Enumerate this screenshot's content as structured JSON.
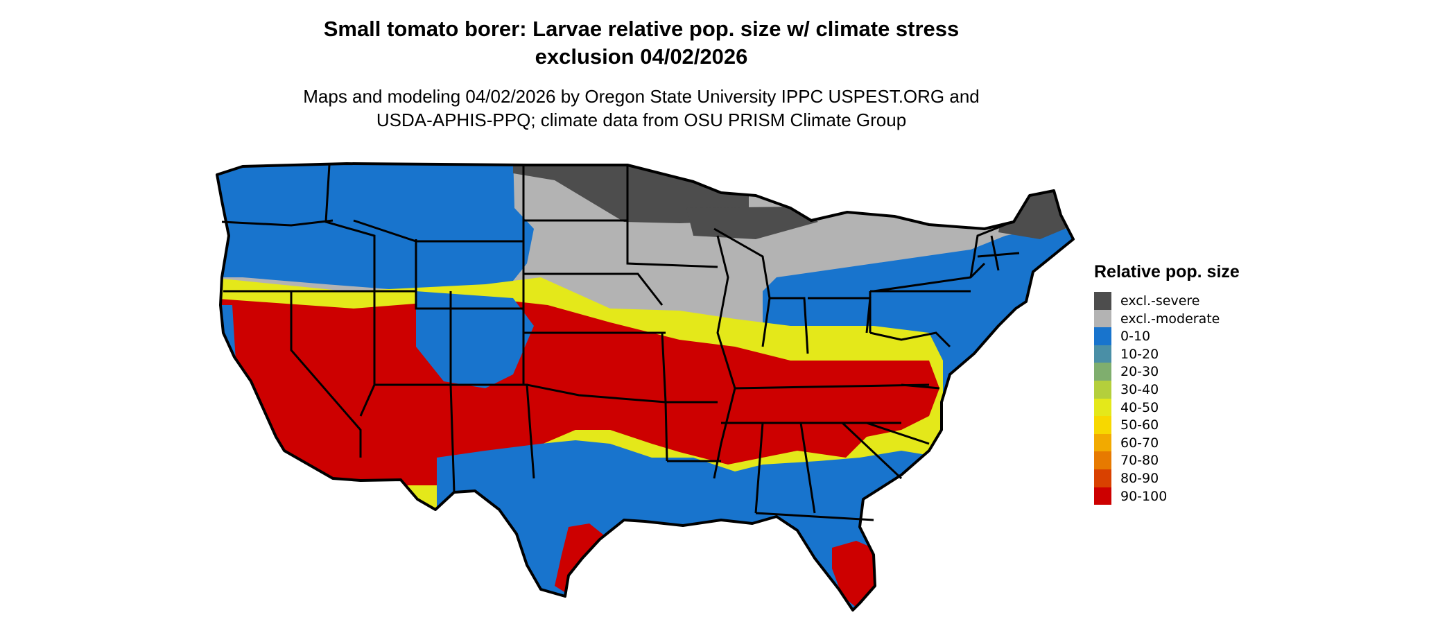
{
  "title_lines": [
    "Small tomato borer: Larvae relative pop. size w/ climate stress",
    "exclusion 04/02/2026"
  ],
  "subtitle_lines": [
    "Maps and modeling 04/02/2026 by Oregon State University IPPC USPEST.ORG and",
    "USDA-APHIS-PPQ; climate data from OSU PRISM Climate Group"
  ],
  "legend": {
    "title": "Relative pop. size",
    "items": [
      {
        "label": "excl.-severe",
        "color": "#4d4d4d"
      },
      {
        "label": "excl.-moderate",
        "color": "#b3b3b3"
      },
      {
        "label": "0-10",
        "color": "#1874cd"
      },
      {
        "label": "10-20",
        "color": "#4a8fa6"
      },
      {
        "label": "20-30",
        "color": "#7fae6e"
      },
      {
        "label": "30-40",
        "color": "#b4cf3c"
      },
      {
        "label": "40-50",
        "color": "#e4e81a"
      },
      {
        "label": "50-60",
        "color": "#f7d800"
      },
      {
        "label": "60-70",
        "color": "#f2aa00"
      },
      {
        "label": "70-80",
        "color": "#e77a00"
      },
      {
        "label": "80-90",
        "color": "#d94100"
      },
      {
        "label": "90-100",
        "color": "#cd0000"
      }
    ]
  },
  "map": {
    "region": "contiguous-united-states",
    "bands": [
      {
        "zone": "north-central-and-northeast",
        "class": "excl.-moderate",
        "color": "#b3b3b3"
      },
      {
        "zone": "northern-minnesota-michigan-maine",
        "class": "excl.-severe",
        "color": "#4d4d4d"
      },
      {
        "zone": "northwest-and-east",
        "class": "0-10",
        "color": "#1874cd"
      },
      {
        "zone": "transition-band",
        "class": "40-50",
        "color": "#e4e81a"
      },
      {
        "zone": "central-south-belt",
        "class": "90-100",
        "color": "#cd0000"
      },
      {
        "zone": "gulf-coast",
        "class": "0-10",
        "color": "#1874cd"
      },
      {
        "zone": "south-texas-and-florida",
        "class": "90-100",
        "color": "#cd0000"
      }
    ]
  }
}
